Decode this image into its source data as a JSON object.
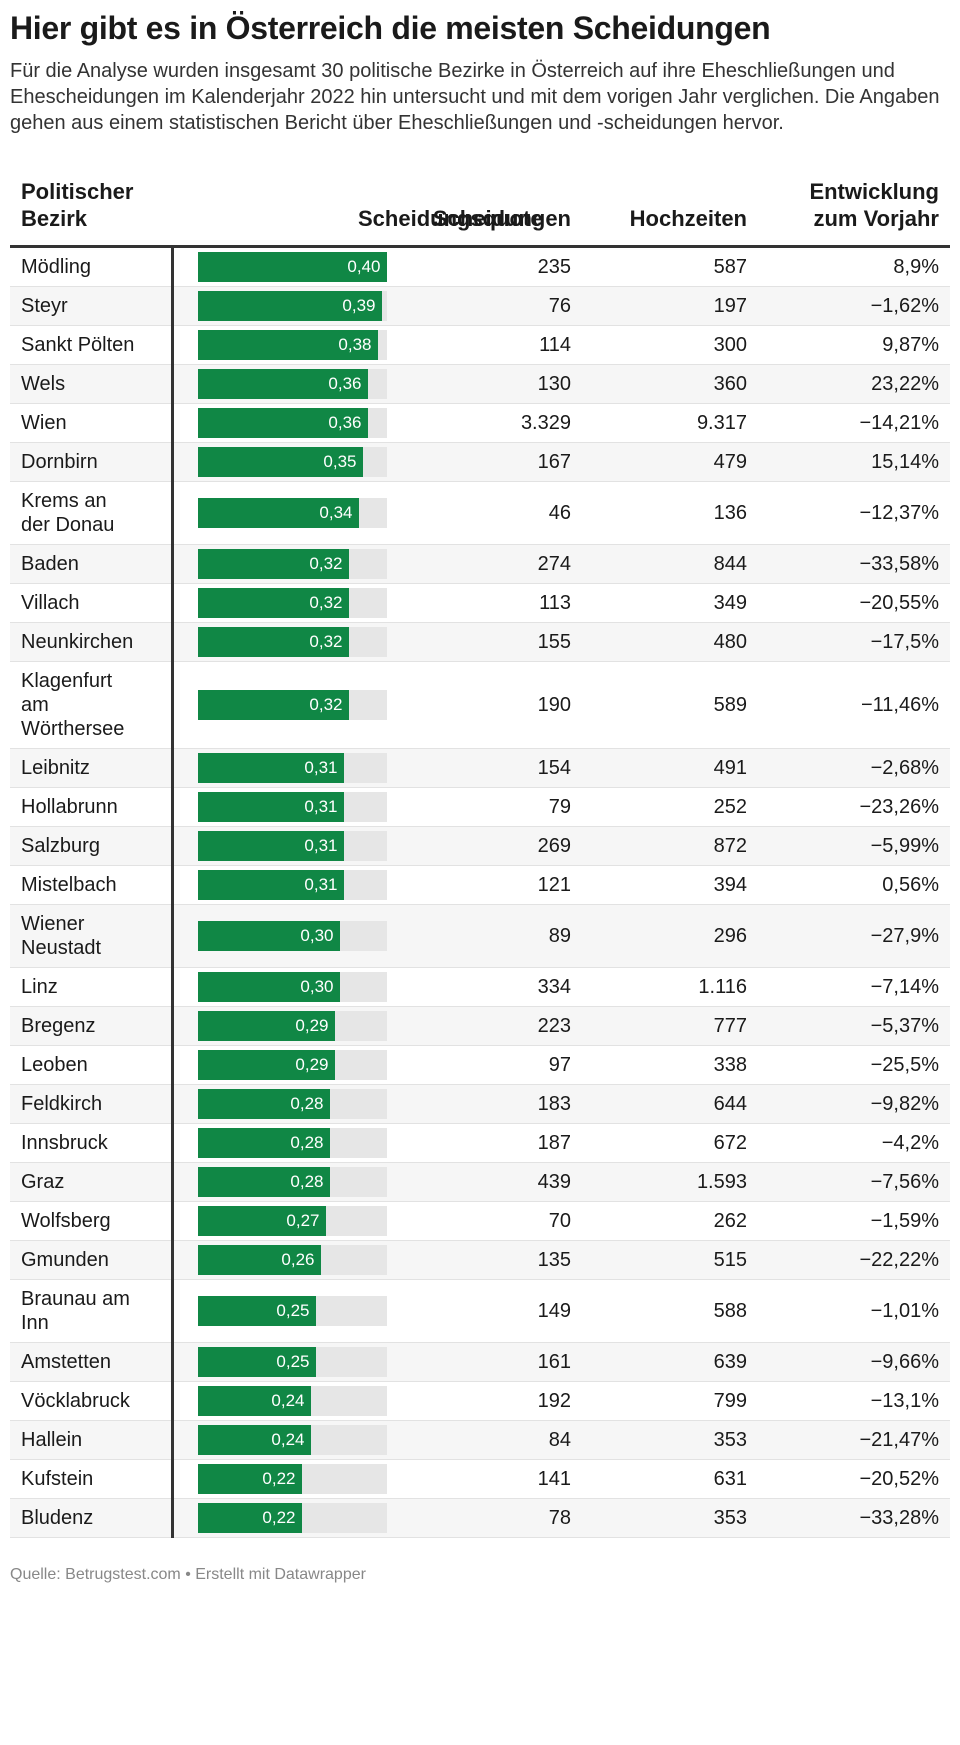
{
  "title": "Hier gibt es in Österreich die meisten Scheidungen",
  "description": "Für die Analyse wurden insgesamt 30 politische Bezirke in Österreich auf ihre Eheschließungen und Ehescheidungen im Kalenderjahr 2022 hin untersucht und mit dem vorigen Jahr verglichen. Die Angaben gehen aus einem statistischen Bericht über Eheschließungen und -scheidungen hervor.",
  "source": "Quelle: Betrugstest.com • Erstellt mit Datawrapper",
  "colors": {
    "bar": "#108745",
    "track": "#e6e6e6"
  },
  "chart_data": {
    "type": "table",
    "title": "Hier gibt es in Österreich die meisten Scheidungen",
    "columns": [
      "Politischer Bezirk",
      "Scheidungsquote",
      "Scheidungen",
      "Hochzeiten",
      "Entwicklung zum Vorjahr"
    ],
    "bar_max": 0.4,
    "rows": [
      {
        "bezirk": "Mödling",
        "quote": 0.4,
        "quote_label": "0,40",
        "scheidungen": "235",
        "hochzeiten": "587",
        "entwicklung": "8,9%"
      },
      {
        "bezirk": "Steyr",
        "quote": 0.39,
        "quote_label": "0,39",
        "scheidungen": "76",
        "hochzeiten": "197",
        "entwicklung": "−1,62%"
      },
      {
        "bezirk": "Sankt Pölten",
        "quote": 0.38,
        "quote_label": "0,38",
        "scheidungen": "114",
        "hochzeiten": "300",
        "entwicklung": "9,87%"
      },
      {
        "bezirk": "Wels",
        "quote": 0.36,
        "quote_label": "0,36",
        "scheidungen": "130",
        "hochzeiten": "360",
        "entwicklung": "23,22%"
      },
      {
        "bezirk": "Wien",
        "quote": 0.36,
        "quote_label": "0,36",
        "scheidungen": "3.329",
        "hochzeiten": "9.317",
        "entwicklung": "−14,21%"
      },
      {
        "bezirk": "Dornbirn",
        "quote": 0.35,
        "quote_label": "0,35",
        "scheidungen": "167",
        "hochzeiten": "479",
        "entwicklung": "15,14%"
      },
      {
        "bezirk": "Krems an der Donau",
        "quote": 0.34,
        "quote_label": "0,34",
        "scheidungen": "46",
        "hochzeiten": "136",
        "entwicklung": "−12,37%"
      },
      {
        "bezirk": "Baden",
        "quote": 0.32,
        "quote_label": "0,32",
        "scheidungen": "274",
        "hochzeiten": "844",
        "entwicklung": "−33,58%"
      },
      {
        "bezirk": "Villach",
        "quote": 0.32,
        "quote_label": "0,32",
        "scheidungen": "113",
        "hochzeiten": "349",
        "entwicklung": "−20,55%"
      },
      {
        "bezirk": "Neunkirchen",
        "quote": 0.32,
        "quote_label": "0,32",
        "scheidungen": "155",
        "hochzeiten": "480",
        "entwicklung": "−17,5%"
      },
      {
        "bezirk": "Klagenfurt am Wörthersee",
        "quote": 0.32,
        "quote_label": "0,32",
        "scheidungen": "190",
        "hochzeiten": "589",
        "entwicklung": "−11,46%"
      },
      {
        "bezirk": "Leibnitz",
        "quote": 0.31,
        "quote_label": "0,31",
        "scheidungen": "154",
        "hochzeiten": "491",
        "entwicklung": "−2,68%"
      },
      {
        "bezirk": "Hollabrunn",
        "quote": 0.31,
        "quote_label": "0,31",
        "scheidungen": "79",
        "hochzeiten": "252",
        "entwicklung": "−23,26%"
      },
      {
        "bezirk": "Salzburg",
        "quote": 0.31,
        "quote_label": "0,31",
        "scheidungen": "269",
        "hochzeiten": "872",
        "entwicklung": "−5,99%"
      },
      {
        "bezirk": "Mistelbach",
        "quote": 0.31,
        "quote_label": "0,31",
        "scheidungen": "121",
        "hochzeiten": "394",
        "entwicklung": "0,56%"
      },
      {
        "bezirk": "Wiener Neustadt",
        "quote": 0.3,
        "quote_label": "0,30",
        "scheidungen": "89",
        "hochzeiten": "296",
        "entwicklung": "−27,9%"
      },
      {
        "bezirk": "Linz",
        "quote": 0.3,
        "quote_label": "0,30",
        "scheidungen": "334",
        "hochzeiten": "1.116",
        "entwicklung": "−7,14%"
      },
      {
        "bezirk": "Bregenz",
        "quote": 0.29,
        "quote_label": "0,29",
        "scheidungen": "223",
        "hochzeiten": "777",
        "entwicklung": "−5,37%"
      },
      {
        "bezirk": "Leoben",
        "quote": 0.29,
        "quote_label": "0,29",
        "scheidungen": "97",
        "hochzeiten": "338",
        "entwicklung": "−25,5%"
      },
      {
        "bezirk": "Feldkirch",
        "quote": 0.28,
        "quote_label": "0,28",
        "scheidungen": "183",
        "hochzeiten": "644",
        "entwicklung": "−9,82%"
      },
      {
        "bezirk": "Innsbruck",
        "quote": 0.28,
        "quote_label": "0,28",
        "scheidungen": "187",
        "hochzeiten": "672",
        "entwicklung": "−4,2%"
      },
      {
        "bezirk": "Graz",
        "quote": 0.28,
        "quote_label": "0,28",
        "scheidungen": "439",
        "hochzeiten": "1.593",
        "entwicklung": "−7,56%"
      },
      {
        "bezirk": "Wolfsberg",
        "quote": 0.27,
        "quote_label": "0,27",
        "scheidungen": "70",
        "hochzeiten": "262",
        "entwicklung": "−1,59%"
      },
      {
        "bezirk": "Gmunden",
        "quote": 0.26,
        "quote_label": "0,26",
        "scheidungen": "135",
        "hochzeiten": "515",
        "entwicklung": "−22,22%"
      },
      {
        "bezirk": "Braunau am Inn",
        "quote": 0.25,
        "quote_label": "0,25",
        "scheidungen": "149",
        "hochzeiten": "588",
        "entwicklung": "−1,01%"
      },
      {
        "bezirk": "Amstetten",
        "quote": 0.25,
        "quote_label": "0,25",
        "scheidungen": "161",
        "hochzeiten": "639",
        "entwicklung": "−9,66%"
      },
      {
        "bezirk": "Vöcklabruck",
        "quote": 0.24,
        "quote_label": "0,24",
        "scheidungen": "192",
        "hochzeiten": "799",
        "entwicklung": "−13,1%"
      },
      {
        "bezirk": "Hallein",
        "quote": 0.24,
        "quote_label": "0,24",
        "scheidungen": "84",
        "hochzeiten": "353",
        "entwicklung": "−21,47%"
      },
      {
        "bezirk": "Kufstein",
        "quote": 0.22,
        "quote_label": "0,22",
        "scheidungen": "141",
        "hochzeiten": "631",
        "entwicklung": "−20,52%"
      },
      {
        "bezirk": "Bludenz",
        "quote": 0.22,
        "quote_label": "0,22",
        "scheidungen": "78",
        "hochzeiten": "353",
        "entwicklung": "−33,28%"
      }
    ]
  }
}
